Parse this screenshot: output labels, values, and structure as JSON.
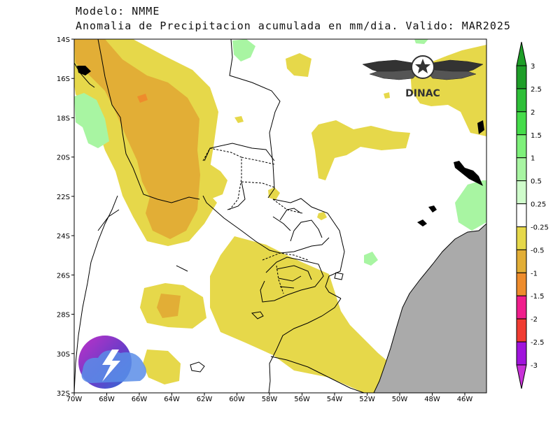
{
  "title": {
    "line1": "Modelo: NMME",
    "line2": "Anomalia de Precipitacion acumulada en mm/dia.  Valido: MAR2025"
  },
  "map": {
    "lat_labels": [
      "14S",
      "16S",
      "18S",
      "20S",
      "22S",
      "24S",
      "26S",
      "28S",
      "30S",
      "32S"
    ],
    "lon_labels": [
      "70W",
      "68W",
      "66W",
      "64W",
      "62W",
      "60W",
      "58W",
      "56W",
      "54W",
      "52W",
      "50W",
      "48W",
      "46W"
    ],
    "ocean_color": "#aaaaaa"
  },
  "colorbar": {
    "labels": [
      "3",
      "2.5",
      "2",
      "1.5",
      "1",
      "0.5",
      "0.25",
      "-0.25",
      "-0.5",
      "-1",
      "-1.5",
      "-2",
      "-2.5",
      "-3"
    ],
    "colors": [
      "#1e9e28",
      "#2ebf38",
      "#45dc4a",
      "#7ef07a",
      "#a8f5a2",
      "#cffccb",
      "#ffffff",
      "#e6d84a",
      "#e2ae36",
      "#ee8c2c",
      "#f01e8c",
      "#f03c32",
      "#a014dc",
      "#c832d8"
    ]
  },
  "logos": {
    "dinac_text": "DINAC",
    "dinac_icon": "winged-star-emblem-icon",
    "brand_icon": "lightning-cloud-logo-icon"
  }
}
